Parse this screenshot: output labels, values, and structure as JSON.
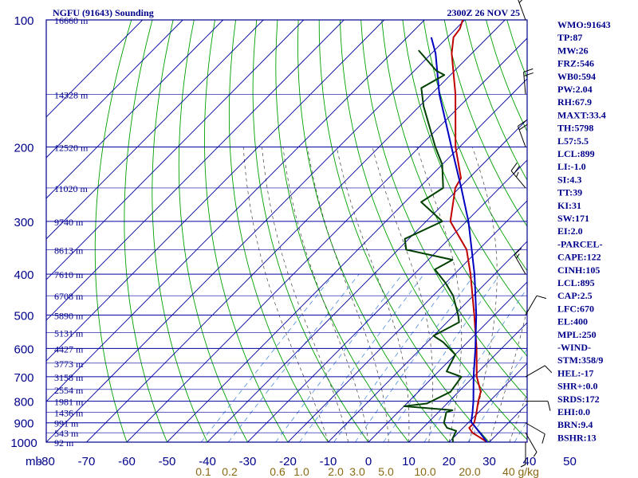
{
  "header": {
    "title": "NGFU (91643) Sounding",
    "timestamp": "2300Z 26 NOV 25"
  },
  "chart_data": {
    "type": "line",
    "chart_kind": "skew-t log-p sounding",
    "pressure_ticks": [
      "100",
      "200",
      "300",
      "400",
      "500",
      "600",
      "700",
      "800",
      "900",
      "1000"
    ],
    "pressure_levels": [
      100,
      200,
      300,
      400,
      500,
      600,
      700,
      800,
      900,
      1000
    ],
    "temperature_ticks": [
      "-80",
      "-70",
      "-60",
      "-50",
      "-40",
      "-30",
      "-20",
      "-10",
      "0",
      "10",
      "20",
      "30",
      "40",
      "50"
    ],
    "temperature_values": [
      -80,
      -70,
      -60,
      -50,
      -40,
      -30,
      -20,
      -10,
      0,
      10,
      20,
      30,
      40,
      50
    ],
    "axis_unit_label": "mb",
    "height_labels": [
      {
        "p": 100,
        "text": "16660 m"
      },
      {
        "p": 150,
        "text": "14328 m"
      },
      {
        "p": 200,
        "text": "12520 m"
      },
      {
        "p": 250,
        "text": "11020 m"
      },
      {
        "p": 300,
        "text": "9740 m"
      },
      {
        "p": 350,
        "text": "8613 m"
      },
      {
        "p": 400,
        "text": "7610 m"
      },
      {
        "p": 450,
        "text": "6708 m"
      },
      {
        "p": 500,
        "text": "5890 m"
      },
      {
        "p": 550,
        "text": "5131 m"
      },
      {
        "p": 600,
        "text": "4427 m"
      },
      {
        "p": 650,
        "text": "3773 m"
      },
      {
        "p": 700,
        "text": "3158 m"
      },
      {
        "p": 750,
        "text": "2554 m"
      },
      {
        "p": 800,
        "text": "1981 m"
      },
      {
        "p": 850,
        "text": "1436 m"
      },
      {
        "p": 900,
        "text": "991 m"
      },
      {
        "p": 950,
        "text": "543 m"
      },
      {
        "p": 1000,
        "text": "92 m"
      }
    ],
    "mixing_ratio_labels": [
      "0.1",
      "0.2",
      "0.6",
      "1.0",
      "2.0",
      "3.0",
      "5.0",
      "10.0",
      "20.0",
      "40 g/kg"
    ],
    "mixing_ratio_values": [
      0.1,
      0.2,
      0.6,
      1.0,
      2.0,
      3.0,
      5.0,
      10.0,
      20.0,
      40.0
    ],
    "series": [
      {
        "name": "Temperature",
        "color": "#c00000",
        "points": [
          {
            "p": 1000,
            "t": 29.5
          },
          {
            "p": 950,
            "t": 23.5
          },
          {
            "p": 925,
            "t": 21.5
          },
          {
            "p": 900,
            "t": 21.5
          },
          {
            "p": 850,
            "t": 19.5
          },
          {
            "p": 800,
            "t": 17.2
          },
          {
            "p": 760,
            "t": 15.5
          },
          {
            "p": 700,
            "t": 10.8
          },
          {
            "p": 600,
            "t": 3.8
          },
          {
            "p": 500,
            "t": -5.0
          },
          {
            "p": 400,
            "t": -16.0
          },
          {
            "p": 350,
            "t": -23.0
          },
          {
            "p": 300,
            "t": -34.0
          },
          {
            "p": 250,
            "t": -41.0
          },
          {
            "p": 237,
            "t": -42.0
          },
          {
            "p": 200,
            "t": -51.0
          },
          {
            "p": 150,
            "t": -64.0
          },
          {
            "p": 120,
            "t": -75.0
          },
          {
            "p": 110,
            "t": -78.5
          },
          {
            "p": 105,
            "t": -79.0
          },
          {
            "p": 100,
            "t": -80.5
          }
        ]
      },
      {
        "name": "Parcel",
        "color": "#0000c0",
        "points": [
          {
            "p": 1000,
            "t": 29.5
          },
          {
            "p": 895,
            "t": 20.5
          },
          {
            "p": 850,
            "t": 18.5
          },
          {
            "p": 800,
            "t": 16.0
          },
          {
            "p": 700,
            "t": 10.0
          },
          {
            "p": 600,
            "t": 3.5
          },
          {
            "p": 500,
            "t": -4.5
          },
          {
            "p": 400,
            "t": -15.0
          },
          {
            "p": 300,
            "t": -29.5
          },
          {
            "p": 250,
            "t": -39.5
          },
          {
            "p": 200,
            "t": -52.0
          },
          {
            "p": 150,
            "t": -68.0
          },
          {
            "p": 120,
            "t": -79.0
          },
          {
            "p": 110,
            "t": -84.0
          }
        ]
      },
      {
        "name": "Dewpoint",
        "color": "#004000",
        "points": [
          {
            "p": 1000,
            "t": 21.0
          },
          {
            "p": 980,
            "t": 20.0
          },
          {
            "p": 940,
            "t": 19.0
          },
          {
            "p": 925,
            "t": 16.0
          },
          {
            "p": 900,
            "t": 14.0
          },
          {
            "p": 850,
            "t": 12.0
          },
          {
            "p": 840,
            "t": 13.0
          },
          {
            "p": 822,
            "t": 0.0
          },
          {
            "p": 810,
            "t": 5.0
          },
          {
            "p": 760,
            "t": 8.0
          },
          {
            "p": 700,
            "t": 7.0
          },
          {
            "p": 680,
            "t": 2.0
          },
          {
            "p": 620,
            "t": 0.0
          },
          {
            "p": 580,
            "t": -6.0
          },
          {
            "p": 560,
            "t": -10.0
          },
          {
            "p": 520,
            "t": -7.0
          },
          {
            "p": 500,
            "t": -9.0
          },
          {
            "p": 450,
            "t": -15.0
          },
          {
            "p": 420,
            "t": -20.0
          },
          {
            "p": 390,
            "t": -26.0
          },
          {
            "p": 370,
            "t": -24.0
          },
          {
            "p": 350,
            "t": -38.0
          },
          {
            "p": 330,
            "t": -41.0
          },
          {
            "p": 300,
            "t": -36.0
          },
          {
            "p": 270,
            "t": -46.0
          },
          {
            "p": 250,
            "t": -44.0
          },
          {
            "p": 220,
            "t": -50.0
          },
          {
            "p": 200,
            "t": -56.0
          },
          {
            "p": 160,
            "t": -69.0
          },
          {
            "p": 145,
            "t": -74.0
          },
          {
            "p": 135,
            "t": -71.5
          },
          {
            "p": 132,
            "t": -74.5
          },
          {
            "p": 118,
            "t": -84.0
          }
        ]
      }
    ],
    "wind_barbs": [
      {
        "p": 100,
        "dir": 340,
        "speed": 15
      },
      {
        "p": 150,
        "dir": 355,
        "speed": 20
      },
      {
        "p": 200,
        "dir": 340,
        "speed": 20
      },
      {
        "p": 250,
        "dir": 320,
        "speed": 25
      },
      {
        "p": 400,
        "dir": 330,
        "speed": 15
      },
      {
        "p": 500,
        "dir": 30,
        "speed": 10
      },
      {
        "p": 700,
        "dir": 60,
        "speed": 10
      },
      {
        "p": 800,
        "dir": 90,
        "speed": 10
      },
      {
        "p": 900,
        "dir": 120,
        "speed": 10
      },
      {
        "p": 950,
        "dir": 150,
        "speed": 5
      },
      {
        "p": 1000,
        "dir": 180,
        "speed": 5
      }
    ]
  },
  "indices": [
    "WMO:91643",
    "TP:87",
    "MW:26",
    "FRZ:546",
    "WB0:594",
    "PW:2.04",
    "RH:67.9",
    "MAXT:33.4",
    "TH:5798",
    "L57:5.5",
    "LCL:899",
    "LI:-1.0",
    "SI:4.3",
    "TT:39",
    "KI:31",
    "SW:171",
    "EI:2.0",
    "-PARCEL-",
    "CAPE:122",
    "CINH:105",
    "LCL:895",
    "CAP:2.5",
    "LFC:670",
    "EL:400",
    "MPL:250",
    "-WIND-",
    "STM:358/9",
    "HEL:-17",
    "SHR+:0.0",
    "SRDS:172",
    "EHI:0.0",
    "BRN:9.4",
    "BSHR:13"
  ],
  "colors": {
    "frame": "#00008b",
    "isobar": "#0000a0",
    "isotherm": "#0000a0",
    "dry_adiabat": "#00a000",
    "moist_adiabat": "#404040",
    "mixing_ratio": "#4b8ce0",
    "mixing_ratio_label": "#8b6914",
    "temperature": "#c00000",
    "parcel": "#0000c0",
    "dewpoint": "#004000",
    "wind_barb": "#000000",
    "index_text": "#00008b"
  }
}
